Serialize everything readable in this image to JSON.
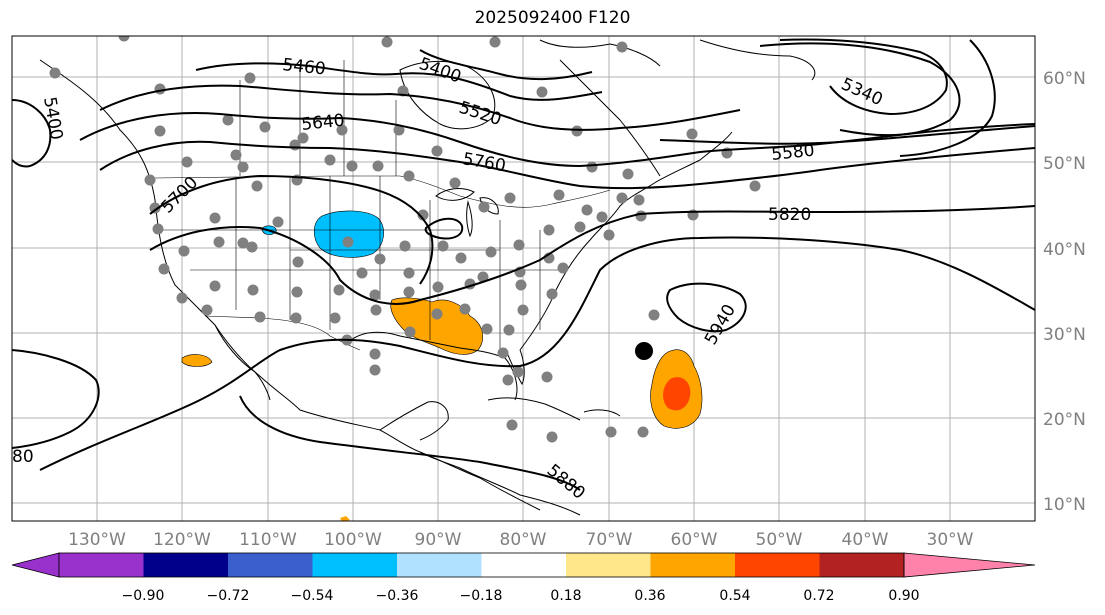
{
  "title": "2025092400 F120",
  "lat_labels": [
    "60°N",
    "50°N",
    "40°N",
    "30°N",
    "20°N",
    "10°N"
  ],
  "lon_labels": [
    "130°W",
    "120°W",
    "110°W",
    "100°W",
    "90°W",
    "80°W",
    "70°W",
    "60°W",
    "50°W",
    "40°W",
    "30°W"
  ],
  "contour_labels": [
    "5460",
    "5400",
    "5520",
    "5640",
    "5760",
    "5580",
    "5340",
    "5820",
    "5400",
    "5700",
    "5940",
    "5880",
    "80"
  ],
  "colorbar": {
    "ticks": [
      "−0.90",
      "−0.72",
      "−0.54",
      "−0.36",
      "−0.18",
      "0.18",
      "0.36",
      "0.54",
      "0.72",
      "0.90"
    ],
    "colors": [
      "#9932cc",
      "#00008b",
      "#3a5fcd",
      "#00bfff",
      "#b0e2ff",
      "#ffffff",
      "#ffe78a",
      "#ffa500",
      "#ff4500",
      "#b22222",
      "#ff82ab"
    ]
  },
  "colors": {
    "positive_anomaly": "#ffa500",
    "strong_positive_anomaly": "#ff4500",
    "negative_anomaly": "#00bfff",
    "station_dot": "#808080",
    "storm_marker": "#000000"
  }
}
